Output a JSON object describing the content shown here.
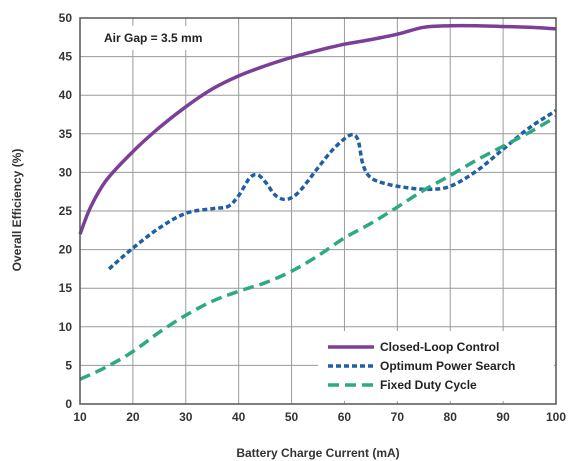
{
  "chart_data": {
    "type": "line",
    "xlabel": "Battery Charge Current (mA)",
    "ylabel": "Overall Efficiency (%)",
    "xlim": [
      10,
      100
    ],
    "ylim": [
      0,
      50
    ],
    "xticks": [
      10,
      20,
      30,
      40,
      50,
      60,
      70,
      80,
      90,
      100
    ],
    "yticks": [
      0,
      5,
      10,
      15,
      20,
      25,
      30,
      35,
      40,
      45,
      50
    ],
    "grid": true,
    "legend_position": "bottom-right",
    "annotation": "Air Gap = 3.5 mm",
    "series": [
      {
        "name": "Closed-Loop Control",
        "color": "#7b3f98",
        "style": "solid",
        "x": [
          10,
          12,
          15,
          20,
          25,
          30,
          35,
          40,
          45,
          50,
          55,
          60,
          65,
          70,
          75,
          80,
          85,
          90,
          95,
          100
        ],
        "y": [
          22,
          25.5,
          29,
          32.7,
          35.8,
          38.5,
          40.8,
          42.5,
          43.8,
          44.9,
          45.8,
          46.6,
          47.2,
          47.9,
          48.8,
          49.0,
          49.0,
          48.9,
          48.8,
          48.6
        ]
      },
      {
        "name": "Optimum Power Search",
        "color": "#1f5fa8",
        "style": "dotted",
        "x": [
          15.5,
          20,
          25,
          30,
          35,
          38,
          40,
          42,
          43.5,
          45,
          47,
          49,
          51,
          53,
          55,
          58,
          61,
          62.5,
          63.5,
          65,
          68,
          72,
          76,
          80,
          85,
          90,
          95,
          100
        ],
        "y": [
          17.5,
          20.2,
          22.8,
          24.7,
          25.3,
          25.6,
          27,
          29.2,
          29.7,
          28.8,
          27,
          26.5,
          27.2,
          28.8,
          30.6,
          33.1,
          34.8,
          34.3,
          31,
          29.3,
          28.5,
          28,
          27.8,
          28.2,
          30.2,
          33,
          35.8,
          38
        ]
      },
      {
        "name": "Fixed Duty Cycle",
        "color": "#2daa7f",
        "style": "dashed",
        "x": [
          10,
          15,
          20,
          25,
          30,
          35,
          40,
          45,
          50,
          55,
          60,
          65,
          70,
          75,
          80,
          85,
          90,
          95,
          100
        ],
        "y": [
          3.2,
          4.8,
          6.8,
          9.3,
          11.5,
          13.3,
          14.6,
          15.7,
          17.2,
          19.2,
          21.5,
          23.4,
          25.5,
          27.7,
          29.6,
          31.6,
          33.4,
          35.2,
          37.2
        ]
      }
    ]
  }
}
